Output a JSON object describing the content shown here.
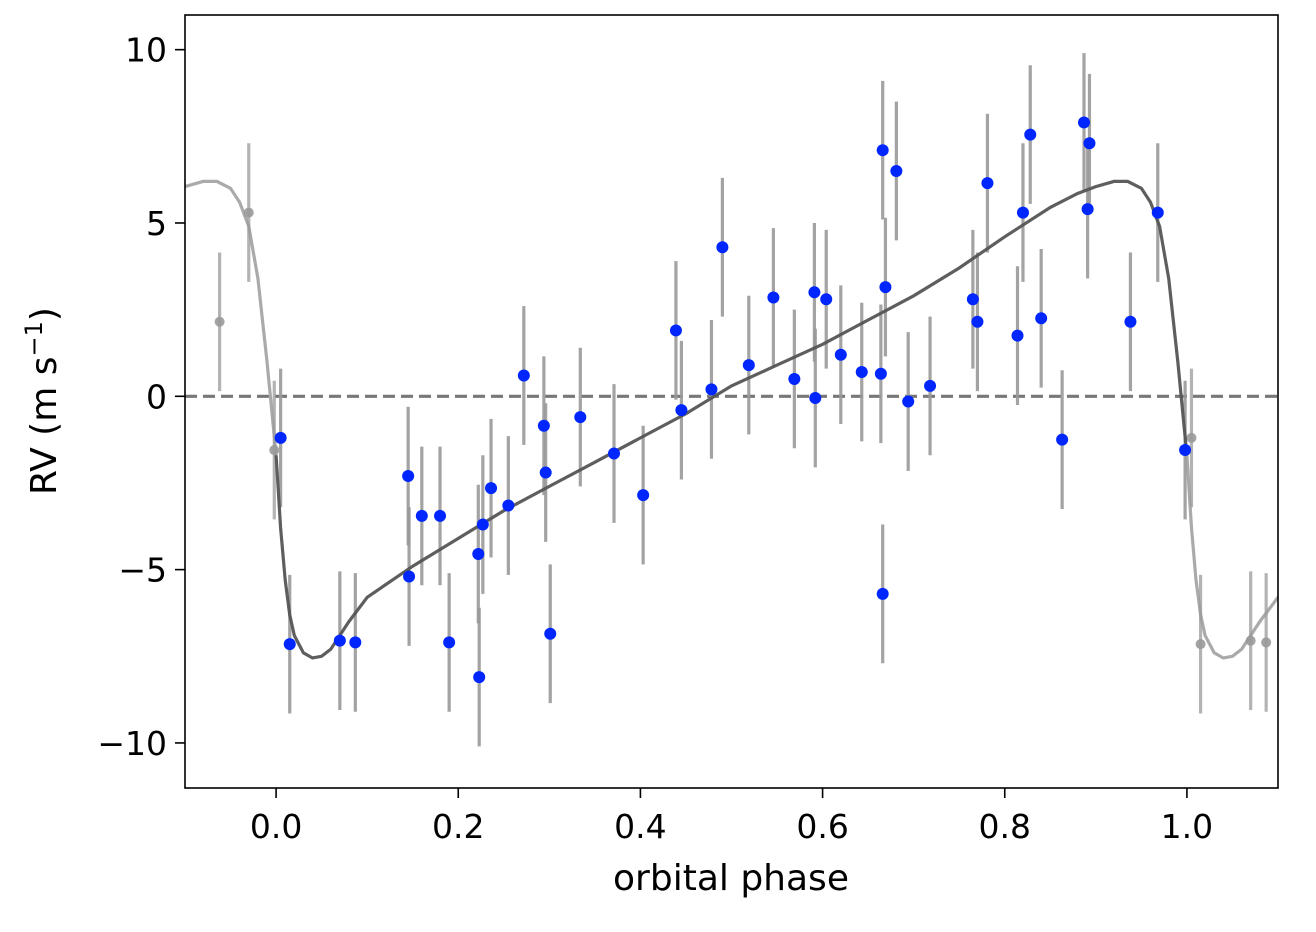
{
  "chart_data": {
    "type": "scatter",
    "title": "",
    "xlabel": "orbital phase",
    "ylabel": "RV (m s⁻¹)",
    "ylabel_main": "RV (m s",
    "ylabel_sup": "−1",
    "ylabel_close": ")",
    "xlim": [
      -0.1,
      1.1
    ],
    "ylim": [
      -11.3,
      11.0
    ],
    "x_ticks": [
      0.0,
      0.2,
      0.4,
      0.6,
      0.8,
      1.0
    ],
    "x_tick_labels": [
      "0.0",
      "0.2",
      "0.4",
      "0.6",
      "0.8",
      "1.0"
    ],
    "y_ticks": [
      -10,
      -5,
      0,
      5,
      10
    ],
    "y_tick_labels": [
      "−10",
      "−5",
      "0",
      "5",
      "10"
    ],
    "grid": false,
    "legend": "none",
    "zero_line": 0,
    "colors": {
      "points": "#0026ff",
      "wrapped_points": "#999999",
      "errorbars": "#999999",
      "model": "#555555",
      "model_wrapped": "#aaaaaa",
      "zero_line": "#777777"
    },
    "model": {
      "phase": [
        0.0,
        0.005,
        0.01,
        0.015,
        0.02,
        0.03,
        0.04,
        0.05,
        0.06,
        0.08,
        0.1,
        0.15,
        0.2,
        0.25,
        0.3,
        0.35,
        0.4,
        0.45,
        0.5,
        0.55,
        0.6,
        0.65,
        0.7,
        0.75,
        0.8,
        0.85,
        0.88,
        0.9,
        0.92,
        0.935,
        0.95,
        0.96,
        0.97,
        0.98,
        0.99,
        1.0
      ],
      "rv": [
        -1.7,
        -3.8,
        -5.3,
        -6.3,
        -6.9,
        -7.4,
        -7.55,
        -7.5,
        -7.3,
        -6.5,
        -5.8,
        -4.9,
        -4.1,
        -3.3,
        -2.6,
        -1.9,
        -1.2,
        -0.5,
        0.3,
        0.9,
        1.5,
        2.2,
        2.9,
        3.7,
        4.6,
        5.45,
        5.85,
        6.05,
        6.2,
        6.2,
        6.0,
        5.6,
        4.9,
        3.4,
        1.0,
        -1.7
      ]
    },
    "measurements": {
      "phase": [
        0.005,
        0.015,
        0.07,
        0.087,
        0.145,
        0.146,
        0.16,
        0.18,
        0.19,
        0.222,
        0.223,
        0.227,
        0.236,
        0.255,
        0.272,
        0.294,
        0.296,
        0.301,
        0.334,
        0.371,
        0.403,
        0.439,
        0.445,
        0.478,
        0.49,
        0.519,
        0.546,
        0.569,
        0.591,
        0.592,
        0.604,
        0.62,
        0.643,
        0.664,
        0.666,
        0.666,
        0.669,
        0.681,
        0.694,
        0.718,
        0.765,
        0.77,
        0.781,
        0.814,
        0.82,
        0.828,
        0.84,
        0.863,
        0.887,
        0.891,
        0.893,
        0.938,
        0.968,
        0.998
      ],
      "rv": [
        -1.2,
        -7.15,
        -7.05,
        -7.1,
        -2.3,
        -5.2,
        -3.45,
        -3.45,
        -7.1,
        -4.55,
        -8.1,
        -3.7,
        -2.65,
        -3.15,
        0.6,
        -0.85,
        -2.2,
        -6.85,
        -0.6,
        -1.65,
        -2.85,
        1.9,
        -0.4,
        0.2,
        4.3,
        0.9,
        2.85,
        0.5,
        3.0,
        -0.05,
        2.8,
        1.2,
        0.7,
        0.65,
        7.1,
        -5.7,
        3.15,
        6.5,
        -0.15,
        0.3,
        2.8,
        2.15,
        6.15,
        1.75,
        5.3,
        7.55,
        2.25,
        -1.25,
        7.9,
        5.4,
        7.3,
        2.15,
        5.3,
        -1.55
      ],
      "error": 2.0
    },
    "wrapped_measurements": {
      "phase": [
        -0.062,
        -0.03,
        -0.002,
        1.005,
        1.015,
        1.07,
        1.087
      ],
      "rv": [
        2.15,
        5.3,
        -1.55,
        -1.2,
        -7.15,
        -7.05,
        -7.1
      ],
      "error": 2.0
    }
  }
}
